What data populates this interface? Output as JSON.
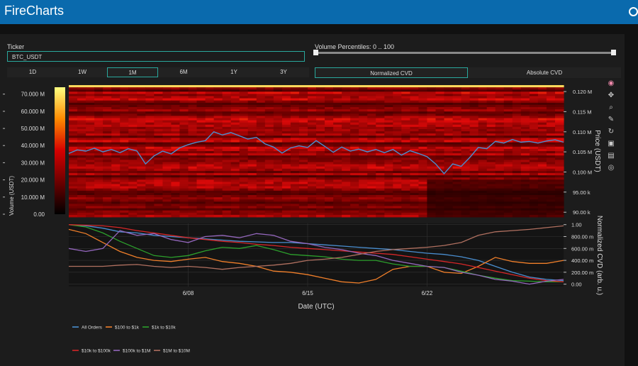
{
  "app": {
    "title": "FireCharts"
  },
  "ticker": {
    "label": "Ticker",
    "value": "BTC_USDT"
  },
  "ranges": [
    "1D",
    "1W",
    "1M",
    "6M",
    "1Y",
    "3Y"
  ],
  "active_range": "1M",
  "volume_percentiles": {
    "label": "Volume Percentiles: 0 .. 100",
    "min": 0,
    "max": 100
  },
  "cvd_modes": [
    "Normalized CVD",
    "Absolute CVD"
  ],
  "active_cvd_mode": "Normalized CVD",
  "toolbar_icons": [
    "plotly-logo-icon",
    "pan-icon",
    "zoom-icon",
    "lasso-icon",
    "reset-icon",
    "save-icon",
    "spike-icon",
    "hover-icon"
  ],
  "colors": {
    "accent": "#2aa89d",
    "topbar": "#0a6aad",
    "price_line": "#4a8fd1"
  },
  "chart_data": [
    {
      "type": "heatmap",
      "colorbar_title": "Volume (USDT)",
      "colorbar_ticks": [
        "0.00",
        "10.000 M",
        "20.000 M",
        "30.000 M",
        "40.000 M",
        "50.000 M",
        "60.000 M",
        "70.000 M"
      ],
      "colorbar_values": [
        0,
        10,
        20,
        30,
        40,
        50,
        60,
        70
      ],
      "colorbar_range": [
        0,
        74
      ],
      "y_axis_title": "Price (USDT)",
      "y_ticks": [
        "90.00 k",
        "95.00 k",
        "0.100 M",
        "0.105 M",
        "0.110 M",
        "0.115 M",
        "0.120 M"
      ],
      "y_values": [
        90,
        95,
        100,
        105,
        110,
        115,
        120
      ],
      "y_range": [
        88.8,
        121.6
      ],
      "price_series": {
        "name": "Price",
        "x": [
          0,
          0.5,
          1,
          1.5,
          2,
          2.5,
          3,
          3.5,
          4,
          4.5,
          5,
          5.5,
          6,
          6.5,
          7,
          7.5,
          8,
          8.5,
          9,
          9.5,
          10,
          10.5,
          11,
          11.5,
          12,
          12.5,
          13,
          13.5,
          14,
          14.5,
          15,
          15.5,
          16,
          16.5,
          17,
          17.5,
          18,
          18.5,
          19,
          19.5,
          20,
          20.5,
          21,
          21.5,
          22,
          22.5,
          23,
          23.5,
          24,
          24.5,
          25,
          25.5,
          26,
          26.5,
          27,
          27.5,
          28,
          28.5,
          29
        ],
        "y": [
          104.6,
          105.5,
          105.2,
          105.9,
          105.0,
          105.6,
          104.8,
          105.8,
          105.2,
          102.0,
          104.0,
          105.2,
          104.5,
          106.0,
          106.8,
          107.4,
          107.8,
          110.0,
          109.2,
          109.8,
          109.0,
          108.2,
          108.6,
          107.0,
          106.2,
          104.7,
          106.0,
          106.5,
          106.1,
          107.8,
          106.4,
          104.9,
          106.2,
          105.2,
          105.7,
          105.0,
          105.6,
          104.8,
          105.6,
          104.2,
          105.3,
          104.6,
          103.8,
          102.0,
          99.6,
          102.0,
          101.4,
          103.6,
          106.1,
          105.8,
          107.6,
          107.2,
          108.1,
          107.4,
          107.6,
          107.2,
          107.7,
          108.0,
          107.4
        ]
      }
    },
    {
      "type": "line",
      "x_axis_title": "Date (UTC)",
      "x_ticks": [
        "6/08",
        "6/15",
        "6/22"
      ],
      "x_tick_values": [
        7,
        14,
        21
      ],
      "x_range": [
        0,
        29
      ],
      "y_axis_title": "Normalized CVD (arb. u.)",
      "y_ticks": [
        "0.00",
        "200.00 m",
        "400.00 m",
        "600.00 m",
        "800.00 m",
        "1.00"
      ],
      "y_values": [
        0,
        0.2,
        0.4,
        0.6,
        0.8,
        1.0
      ],
      "y_range": [
        -0.04,
        1.02
      ],
      "legend_placement": "bottom",
      "series": [
        {
          "name": "All Orders",
          "color": "#4a8fd1",
          "y": [
            1.0,
            0.98,
            0.94,
            0.88,
            0.86,
            0.82,
            0.8,
            0.78,
            0.76,
            0.74,
            0.72,
            0.71,
            0.7,
            0.7,
            0.68,
            0.66,
            0.64,
            0.62,
            0.6,
            0.58,
            0.55,
            0.52,
            0.5,
            0.46,
            0.4,
            0.3,
            0.2,
            0.12,
            0.08,
            0.06
          ]
        },
        {
          "name": "$100 to $1k",
          "color": "#f07f2a",
          "y": [
            0.92,
            0.85,
            0.7,
            0.55,
            0.45,
            0.4,
            0.38,
            0.42,
            0.45,
            0.38,
            0.35,
            0.3,
            0.22,
            0.2,
            0.16,
            0.1,
            0.04,
            0.02,
            0.08,
            0.25,
            0.3,
            0.3,
            0.2,
            0.18,
            0.3,
            0.45,
            0.38,
            0.35,
            0.35,
            0.4
          ]
        },
        {
          "name": "$1k to $10k",
          "color": "#2ca02c",
          "y": [
            1.0,
            0.96,
            0.86,
            0.72,
            0.6,
            0.48,
            0.45,
            0.48,
            0.56,
            0.62,
            0.6,
            0.65,
            0.58,
            0.5,
            0.48,
            0.46,
            0.42,
            0.4,
            0.4,
            0.34,
            0.3,
            0.3,
            0.28,
            0.22,
            0.15,
            0.1,
            0.06,
            0.05,
            0.04,
            0.04
          ]
        },
        {
          "name": "$10k to $100k",
          "color": "#d62728",
          "y": [
            1.0,
            0.99,
            0.98,
            0.95,
            0.9,
            0.86,
            0.82,
            0.78,
            0.75,
            0.72,
            0.7,
            0.67,
            0.65,
            0.62,
            0.6,
            0.58,
            0.56,
            0.54,
            0.52,
            0.5,
            0.46,
            0.42,
            0.38,
            0.34,
            0.28,
            0.22,
            0.16,
            0.1,
            0.06,
            0.04
          ]
        },
        {
          "name": "$100k to $1M",
          "color": "#9467bd",
          "y": [
            0.6,
            0.55,
            0.6,
            0.9,
            0.82,
            0.85,
            0.75,
            0.7,
            0.8,
            0.82,
            0.78,
            0.85,
            0.82,
            0.72,
            0.68,
            0.62,
            0.58,
            0.52,
            0.48,
            0.4,
            0.35,
            0.3,
            0.28,
            0.2,
            0.15,
            0.08,
            0.05,
            0.0,
            0.05,
            0.08
          ]
        },
        {
          "name": "$1M to $10M",
          "color": "#b07060",
          "y": [
            0.3,
            0.3,
            0.3,
            0.32,
            0.33,
            0.3,
            0.28,
            0.3,
            0.28,
            0.25,
            0.28,
            0.3,
            0.32,
            0.35,
            0.4,
            0.42,
            0.45,
            0.5,
            0.55,
            0.58,
            0.6,
            0.62,
            0.65,
            0.7,
            0.82,
            0.88,
            0.9,
            0.92,
            0.95,
            0.98
          ]
        }
      ]
    }
  ]
}
